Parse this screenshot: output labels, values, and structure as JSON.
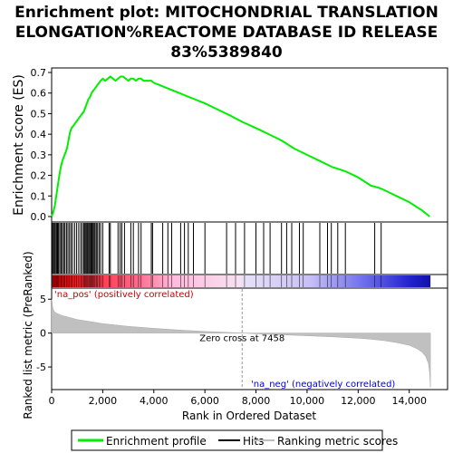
{
  "title_lines": [
    "Enrichment plot: MITOCHONDRIAL TRANSLATION",
    "ELONGATION%REACTOME DATABASE ID RELEASE",
    "83%5389840"
  ],
  "colors": {
    "es_line": "#00ee00",
    "hits": "#000000",
    "metric_fill": "#c0c0c0",
    "pos_label": "#cc0000",
    "neg_label": "#0000cc",
    "zero_line": "#999999"
  },
  "chart_data": {
    "type": "line",
    "es_panel": {
      "ylabel": "Enrichment score (ES)",
      "ylim": [
        0,
        0.7
      ],
      "yticks": [
        0.0,
        0.1,
        0.2,
        0.3,
        0.4,
        0.5,
        0.6,
        0.7
      ],
      "ytick_labels": [
        "0.0",
        "0.1",
        "0.2",
        "0.3",
        "0.4",
        "0.5",
        "0.6",
        "0.7"
      ],
      "series": [
        {
          "name": "Enrichment profile",
          "x": [
            0,
            60,
            120,
            180,
            240,
            300,
            360,
            420,
            480,
            540,
            600,
            660,
            720,
            780,
            840,
            900,
            960,
            1020,
            1080,
            1140,
            1200,
            1260,
            1320,
            1380,
            1440,
            1500,
            1560,
            1620,
            1680,
            1740,
            1800,
            1860,
            1920,
            2000,
            2100,
            2200,
            2300,
            2400,
            2500,
            2600,
            2700,
            2800,
            2900,
            3000,
            3100,
            3200,
            3300,
            3400,
            3500,
            3600,
            3700,
            3800,
            3900,
            4000,
            4200,
            4400,
            4600,
            4800,
            5000,
            5200,
            5400,
            5600,
            5800,
            6000,
            6500,
            7000,
            7458,
            8000,
            8500,
            9000,
            9500,
            10000,
            10500,
            11000,
            11500,
            12000,
            12500,
            12800,
            13000,
            13500,
            14000,
            14500,
            14800
          ],
          "y": [
            0.0,
            0.02,
            0.05,
            0.1,
            0.15,
            0.2,
            0.24,
            0.27,
            0.29,
            0.31,
            0.33,
            0.37,
            0.41,
            0.43,
            0.44,
            0.45,
            0.46,
            0.47,
            0.48,
            0.49,
            0.5,
            0.51,
            0.53,
            0.55,
            0.57,
            0.58,
            0.6,
            0.61,
            0.62,
            0.63,
            0.64,
            0.65,
            0.66,
            0.67,
            0.66,
            0.67,
            0.68,
            0.67,
            0.66,
            0.67,
            0.68,
            0.68,
            0.67,
            0.66,
            0.67,
            0.67,
            0.66,
            0.67,
            0.67,
            0.66,
            0.66,
            0.66,
            0.66,
            0.65,
            0.64,
            0.63,
            0.62,
            0.61,
            0.6,
            0.59,
            0.58,
            0.57,
            0.56,
            0.55,
            0.52,
            0.49,
            0.46,
            0.43,
            0.4,
            0.37,
            0.33,
            0.3,
            0.27,
            0.24,
            0.22,
            0.19,
            0.15,
            0.14,
            0.13,
            0.1,
            0.07,
            0.03,
            0.0
          ]
        }
      ]
    },
    "hits_x": [
      30,
      70,
      110,
      150,
      190,
      230,
      270,
      320,
      370,
      420,
      470,
      520,
      580,
      640,
      700,
      760,
      820,
      900,
      980,
      1060,
      1140,
      1200,
      1260,
      1300,
      1340,
      1380,
      1420,
      1460,
      1500,
      1540,
      1580,
      1620,
      1660,
      1700,
      1750,
      1800,
      1860,
      1920,
      2000,
      2250,
      2300,
      2600,
      2680,
      2750,
      2850,
      3100,
      3200,
      3400,
      3500,
      3900,
      3950,
      4350,
      4550,
      4700,
      5050,
      5200,
      5350,
      5550,
      6000,
      6850,
      7200,
      7550,
      8000,
      8300,
      8550,
      9000,
      9200,
      9400,
      9700,
      9850,
      10500,
      10800,
      10950,
      11200,
      11500,
      12650,
      12900
    ],
    "metric_panel": {
      "ylabel": "Ranked list metric (PreRanked)",
      "ylim": [
        -8.2,
        6.5
      ],
      "yticks": [
        5,
        0,
        -5
      ],
      "ytick_labels": [
        "5",
        "0",
        "-5"
      ],
      "curve_x": [
        0,
        50,
        100,
        200,
        400,
        700,
        1000,
        1500,
        2000,
        3000,
        4000,
        5000,
        6000,
        7000,
        7458,
        8000,
        9000,
        10000,
        11000,
        12000,
        12500,
        13000,
        13500,
        14000,
        14300,
        14500,
        14650,
        14750,
        14800,
        14830
      ],
      "curve_y": [
        5.0,
        3.6,
        3.2,
        2.9,
        2.6,
        2.3,
        2.0,
        1.7,
        1.4,
        1.0,
        0.7,
        0.45,
        0.25,
        0.08,
        0.0,
        -0.1,
        -0.25,
        -0.4,
        -0.55,
        -0.75,
        -0.9,
        -1.1,
        -1.4,
        -1.8,
        -2.3,
        -2.8,
        -3.5,
        -4.5,
        -6.0,
        -8.0
      ]
    },
    "xaxis": {
      "label": "Rank in Ordered Dataset",
      "xlim": [
        0,
        15500
      ],
      "ticks": [
        0,
        2000,
        4000,
        6000,
        8000,
        10000,
        12000,
        14000
      ],
      "tick_labels": [
        "0",
        "2,000",
        "4,000",
        "6,000",
        "8,000",
        "10,000",
        "12,000",
        "14,000"
      ]
    },
    "zero_cross": 7458,
    "zero_cross_label": "Zero cross at 7458",
    "pos_label": "'na_pos' (positively correlated)",
    "neg_label": "'na_neg' (negatively correlated)",
    "gradient_end": 14830,
    "legend": [
      {
        "label": "Enrichment profile",
        "kind": "es",
        "color": "#00ee00"
      },
      {
        "label": "Hits",
        "kind": "hits",
        "color": "#000000"
      },
      {
        "label": "Ranking metric scores",
        "kind": "metric",
        "color": "#c0c0c0"
      }
    ],
    "grid": false
  }
}
